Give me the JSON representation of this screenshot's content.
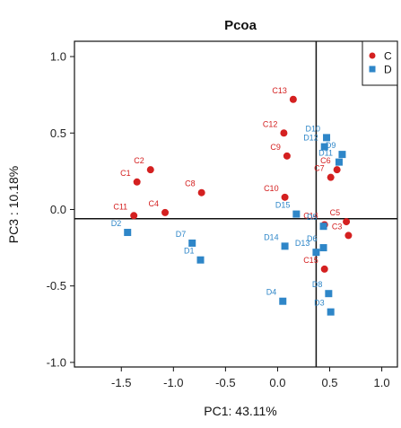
{
  "chart_data": {
    "type": "scatter",
    "title": "Pcoa",
    "xlabel": "PC1: 43.11%",
    "ylabel": "PC3 : 10.18%",
    "xlim": [
      -1.95,
      1.15
    ],
    "ylim": [
      -1.03,
      1.1
    ],
    "x_ticks": [
      "-1.5",
      "-1.0",
      "-0.5",
      "0.0",
      "0.5",
      "1.0"
    ],
    "y_ticks": [
      "1.0",
      "0.5",
      "0.0",
      "-0.5",
      "-1.0"
    ],
    "reference_lines": {
      "x": 0.37,
      "y": -0.06
    },
    "grid": false,
    "legend_position": "top-right",
    "colors": {
      "C": "#d42020",
      "D": "#2e86c8"
    },
    "series": [
      {
        "name": "C",
        "marker": "circle",
        "points": [
          {
            "label": "C1",
            "x": -1.35,
            "y": 0.18
          },
          {
            "label": "C2",
            "x": -1.22,
            "y": 0.26
          },
          {
            "label": "C3",
            "x": 0.68,
            "y": -0.17
          },
          {
            "label": "C4",
            "x": -1.08,
            "y": -0.02
          },
          {
            "label": "C5",
            "x": 0.66,
            "y": -0.08
          },
          {
            "label": "C6",
            "x": 0.57,
            "y": 0.26
          },
          {
            "label": "C7",
            "x": 0.51,
            "y": 0.21
          },
          {
            "label": "C8",
            "x": -0.73,
            "y": 0.11
          },
          {
            "label": "C9",
            "x": 0.09,
            "y": 0.35
          },
          {
            "label": "C10",
            "x": 0.07,
            "y": 0.08
          },
          {
            "label": "C11",
            "x": -1.38,
            "y": -0.04
          },
          {
            "label": "C12",
            "x": 0.06,
            "y": 0.5
          },
          {
            "label": "C13",
            "x": 0.15,
            "y": 0.72
          },
          {
            "label": "C14",
            "x": 0.45,
            "y": -0.1
          },
          {
            "label": "C15",
            "x": 0.45,
            "y": -0.39
          }
        ]
      },
      {
        "name": "D",
        "marker": "square",
        "points": [
          {
            "label": "D1",
            "x": -0.74,
            "y": -0.33
          },
          {
            "label": "D2",
            "x": -1.44,
            "y": -0.15
          },
          {
            "label": "D3",
            "x": 0.51,
            "y": -0.67
          },
          {
            "label": "D4",
            "x": 0.05,
            "y": -0.6
          },
          {
            "label": "D5",
            "x": 0.44,
            "y": -0.11
          },
          {
            "label": "D6",
            "x": 0.44,
            "y": -0.25
          },
          {
            "label": "D7",
            "x": -0.82,
            "y": -0.22
          },
          {
            "label": "D8",
            "x": 0.49,
            "y": -0.55
          },
          {
            "label": "D9",
            "x": 0.62,
            "y": 0.36
          },
          {
            "label": "D10",
            "x": 0.47,
            "y": 0.47
          },
          {
            "label": "D11",
            "x": 0.59,
            "y": 0.31
          },
          {
            "label": "D12",
            "x": 0.45,
            "y": 0.41
          },
          {
            "label": "D13",
            "x": 0.37,
            "y": -0.28
          },
          {
            "label": "D14",
            "x": 0.07,
            "y": -0.24
          },
          {
            "label": "D15",
            "x": 0.18,
            "y": -0.03
          }
        ]
      }
    ]
  }
}
